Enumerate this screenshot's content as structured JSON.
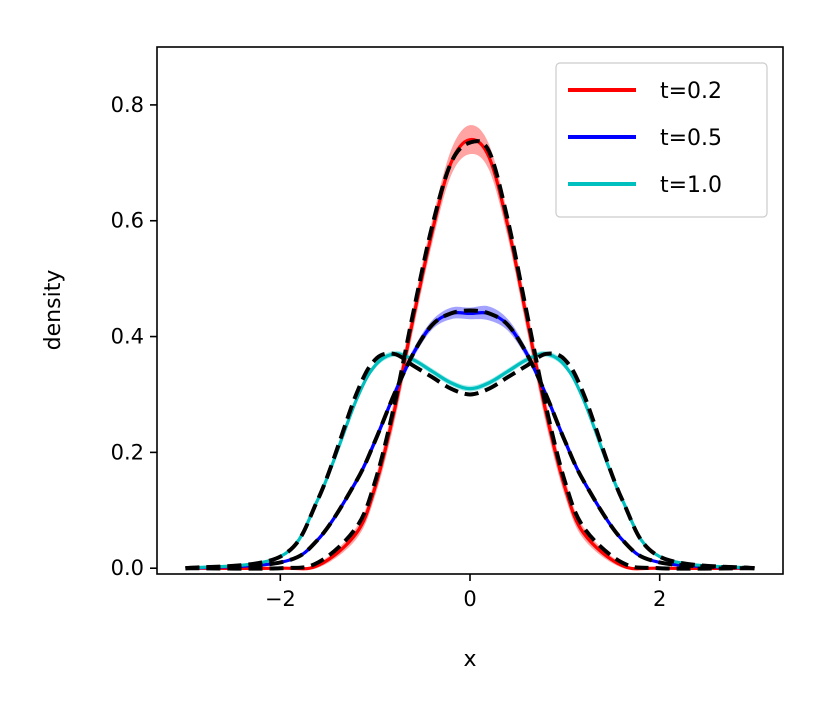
{
  "chart_data": {
    "type": "line",
    "xlabel": "x",
    "ylabel": "density",
    "xlim": [
      -3.3,
      3.3
    ],
    "ylim": [
      -0.01,
      0.9
    ],
    "x_ticks": [
      -2,
      0,
      2
    ],
    "x_tick_labels": [
      "−2",
      "0",
      "2"
    ],
    "y_ticks": [
      0.0,
      0.2,
      0.4,
      0.6,
      0.8
    ],
    "y_tick_labels": [
      "0.0",
      "0.2",
      "0.4",
      "0.6",
      "0.8"
    ],
    "grid": false,
    "legend_position": "top-right",
    "x": [
      -3.0,
      -2.0,
      -1.6,
      -1.2,
      -1.0,
      -0.8,
      -0.6,
      -0.4,
      -0.2,
      0.0,
      0.2,
      0.4,
      0.6,
      0.8,
      1.0,
      1.2,
      1.6,
      2.0,
      3.0
    ],
    "series": [
      {
        "name": "t=0.2",
        "color": "#ff0000",
        "band_color": "#ff6666",
        "values": [
          0.0,
          0.0,
          0.005,
          0.06,
          0.14,
          0.27,
          0.43,
          0.58,
          0.7,
          0.74,
          0.71,
          0.59,
          0.43,
          0.27,
          0.14,
          0.06,
          0.005,
          0.0,
          0.0
        ],
        "band_halfwidth": [
          0.0,
          0.0,
          0.004,
          0.01,
          0.015,
          0.02,
          0.02,
          0.02,
          0.022,
          0.025,
          0.022,
          0.02,
          0.02,
          0.02,
          0.015,
          0.01,
          0.004,
          0.0,
          0.0
        ],
        "reference_values": [
          0.0,
          0.0,
          0.01,
          0.07,
          0.15,
          0.28,
          0.44,
          0.59,
          0.7,
          0.735,
          0.72,
          0.6,
          0.44,
          0.28,
          0.15,
          0.07,
          0.01,
          0.0,
          0.0
        ]
      },
      {
        "name": "t=0.5",
        "color": "#0000ff",
        "band_color": "#6666ff",
        "values": [
          0.0,
          0.01,
          0.05,
          0.15,
          0.22,
          0.3,
          0.37,
          0.42,
          0.44,
          0.44,
          0.44,
          0.42,
          0.37,
          0.3,
          0.22,
          0.15,
          0.05,
          0.01,
          0.0
        ],
        "band_halfwidth": [
          0.0,
          0.002,
          0.004,
          0.006,
          0.008,
          0.008,
          0.008,
          0.008,
          0.01,
          0.01,
          0.012,
          0.01,
          0.008,
          0.008,
          0.008,
          0.006,
          0.004,
          0.002,
          0.0
        ],
        "reference_values": [
          0.0,
          0.01,
          0.05,
          0.15,
          0.22,
          0.3,
          0.37,
          0.42,
          0.44,
          0.445,
          0.44,
          0.42,
          0.37,
          0.3,
          0.22,
          0.15,
          0.05,
          0.01,
          0.0
        ]
      },
      {
        "name": "t=1.0",
        "color": "#00bfbf",
        "band_color": "#66dddd",
        "values": [
          0.0,
          0.02,
          0.12,
          0.29,
          0.35,
          0.37,
          0.36,
          0.34,
          0.32,
          0.31,
          0.32,
          0.34,
          0.36,
          0.37,
          0.35,
          0.29,
          0.12,
          0.02,
          0.0
        ],
        "band_halfwidth": [
          0.0,
          0.002,
          0.004,
          0.005,
          0.005,
          0.005,
          0.005,
          0.005,
          0.005,
          0.005,
          0.005,
          0.005,
          0.005,
          0.005,
          0.005,
          0.005,
          0.004,
          0.002,
          0.0
        ],
        "reference_values": [
          0.0,
          0.02,
          0.12,
          0.3,
          0.36,
          0.37,
          0.35,
          0.33,
          0.31,
          0.3,
          0.31,
          0.33,
          0.35,
          0.37,
          0.36,
          0.3,
          0.12,
          0.02,
          0.0
        ]
      }
    ],
    "reference_line": {
      "color": "#000000",
      "style": "dashed"
    }
  }
}
